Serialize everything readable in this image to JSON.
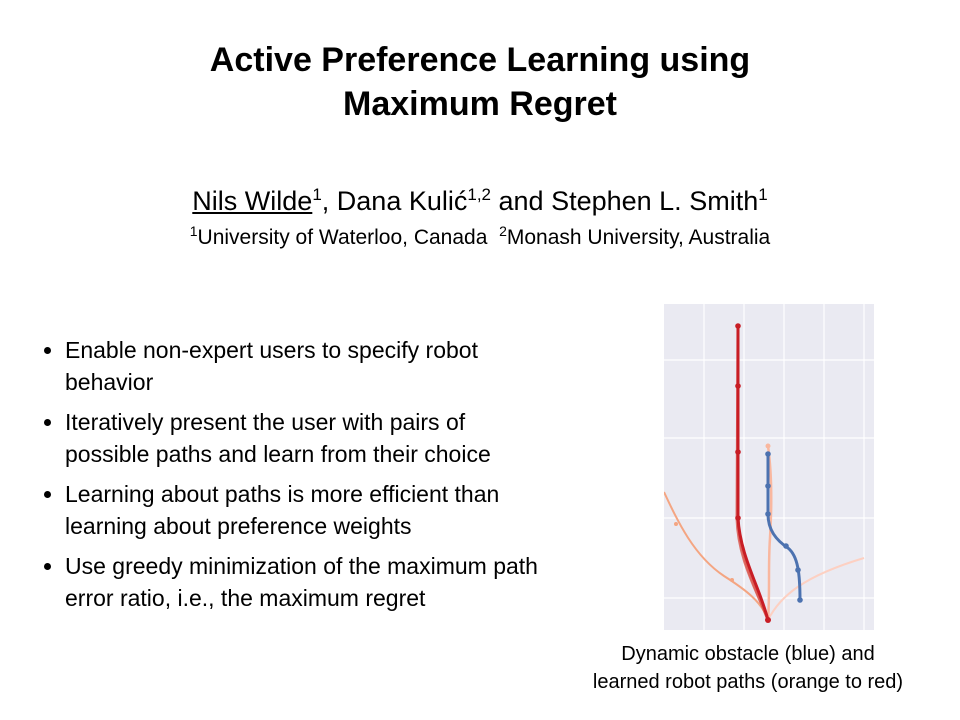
{
  "title": {
    "line1": "Active Preference Learning using",
    "line2": "Maximum Regret"
  },
  "authors": {
    "author1": "Nils Wilde",
    "author1_sup": "1",
    "sep1": ", ",
    "author2": "Dana Kulić",
    "author2_sup": "1,2",
    "sep2": " and ",
    "author3": "Stephen L. Smith",
    "author3_sup": "1"
  },
  "affiliations": {
    "sup1": "1",
    "name1": "University of Waterloo, Canada",
    "sup2": "2",
    "name2": "Monash University, Australia"
  },
  "bullets": [
    {
      "line1": "Enable non-expert users to specify robot",
      "line2": "behavior"
    },
    {
      "line1": "Iteratively present the user with pairs of",
      "line2": "possible paths and learn from their choice"
    },
    {
      "line1": "Learning about paths is more efficient than",
      "line2": "learning about preference weights"
    },
    {
      "line1": "Use greedy minimization of the maximum path",
      "line2": "error ratio, i.e., the maximum regret"
    }
  ],
  "figure": {
    "colors": {
      "background": "#eaeaf2",
      "grid": "#ffffff",
      "obstacle": "#4c72b0",
      "path_light": "#fdd0c2",
      "path_orange": "#f4a582",
      "path_red": "#c81d25"
    }
  },
  "caption": {
    "line1": "Dynamic obstacle (blue) and",
    "line2": "learned robot paths (orange to red)"
  }
}
